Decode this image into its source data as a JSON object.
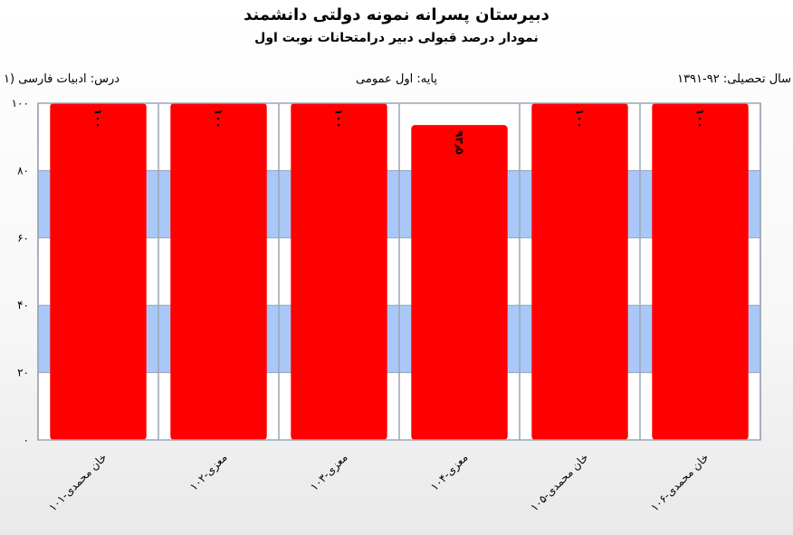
{
  "header": {
    "title": "دبیرستان پسرانه نمونه دولتی دانشمند",
    "subtitle": "نمودار درصد قبولی دبیر درامتحانات نوبت اول",
    "year": "سال تحصیلی: ۹۲-۱۳۹۱",
    "grade": "پایه: اول عمومی",
    "lesson": "درس: ادبیات  فارسی (۱"
  },
  "colors": {
    "bar": "#ff0000",
    "band": "#a9c8f8",
    "grid": "#9aa5b4"
  },
  "chart_data": {
    "type": "bar",
    "categories": [
      "خان محمدی-۱۰۱",
      "معزی-۱۰۲",
      "معزی-۱۰۳",
      "معزی-۱۰۴",
      "خان محمدی-۱۰۵",
      "خان محمدی-۱۰۶"
    ],
    "values": [
      100,
      100,
      100,
      93.5,
      100,
      100
    ],
    "value_labels": [
      "۱۰۰",
      "۱۰۰",
      "۱۰۰",
      "۹۳٫۵",
      "۱۰۰",
      "۱۰۰"
    ],
    "ylim": [
      0,
      100
    ],
    "yticks": [
      0,
      20,
      40,
      60,
      80,
      100
    ],
    "ytick_labels": [
      "۰",
      "۲۰",
      "۴۰",
      "۶۰",
      "۸۰",
      "۱۰۰"
    ],
    "xlabel": "",
    "ylabel": "",
    "grid": true,
    "legend": false
  }
}
